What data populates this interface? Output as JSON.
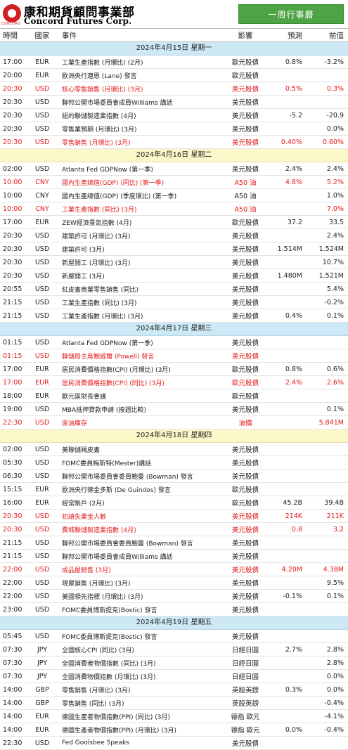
{
  "brand": {
    "zh": "康和期貨顧問事業部",
    "en": "Concord Futures Corp.",
    "mark_text": "CONCORD"
  },
  "title_button": "一周行事曆",
  "columns": {
    "time": "時間",
    "country": "國家",
    "event": "事件",
    "impact": "影響",
    "forecast": "預測",
    "previous": "前值"
  },
  "days": [
    {
      "date": "2024年4月15日  星期一",
      "style": "blue",
      "events": [
        {
          "time": "17:00",
          "country": "EUR",
          "event": "工業生產指數 (月環比) (2月)",
          "impact": "歐元股債",
          "forecast": "0.8%",
          "previous": "-3.2%",
          "red": false
        },
        {
          "time": "20:00",
          "country": "EUR",
          "event": "歐洲央行連恩 (Lane) 發言",
          "impact": "歐元股債",
          "forecast": "",
          "previous": "",
          "red": false
        },
        {
          "time": "20:30",
          "country": "USD",
          "event": "核心零售銷售 (月環比) (3月)",
          "impact": "美元股債",
          "forecast": "0.5%",
          "previous": "0.3%",
          "red": true
        },
        {
          "time": "20:30",
          "country": "USD",
          "event": "聯邦公開市場委員會成員Williams 講話",
          "impact": "美元股債",
          "forecast": "",
          "previous": "",
          "red": false
        },
        {
          "time": "20:30",
          "country": "USD",
          "event": "紐約聯儲製造業指數 (4月)",
          "impact": "美元股債",
          "forecast": "-5.2",
          "previous": "-20.9",
          "red": false
        },
        {
          "time": "20:30",
          "country": "USD",
          "event": "零售業預期 (月環比) (3月)",
          "impact": "美元股債",
          "forecast": "",
          "previous": "0.0%",
          "red": false
        },
        {
          "time": "20:30",
          "country": "USD",
          "event": "零售銷售 (月環比) (3月)",
          "impact": "美元股債",
          "forecast": "0.40%",
          "previous": "0.60%",
          "red": true
        }
      ]
    },
    {
      "date": "2024年4月16日  星期二",
      "style": "yellow",
      "events": [
        {
          "time": "02:00",
          "country": "USD",
          "event": "Atlanta Fed GDPNow (第一季)",
          "impact": "美元股債",
          "forecast": "2.4%",
          "previous": "2.4%",
          "red": false
        },
        {
          "time": "10:00",
          "country": "CNY",
          "event": "國內生產總值(GDP) (同比) (第一季)",
          "impact": "A50 油",
          "forecast": "4.8%",
          "previous": "5.2%",
          "red": true
        },
        {
          "time": "10:00",
          "country": "CNY",
          "event": "國內生產總值(GDP) (季度環比) (第一季)",
          "impact": "A50 油",
          "forecast": "",
          "previous": "1.0%",
          "red": false
        },
        {
          "time": "10:00",
          "country": "CNY",
          "event": "工業生產指數 (同比) (3月)",
          "impact": "A50 油",
          "forecast": "",
          "previous": "7.0%",
          "red": true
        },
        {
          "time": "17:00",
          "country": "EUR",
          "event": "ZEW經濟景氣指數 (4月)",
          "impact": "歐元股債",
          "forecast": "37.2",
          "previous": "33.5",
          "red": false
        },
        {
          "time": "20:30",
          "country": "USD",
          "event": "建築許可 (月環比) (3月)",
          "impact": "美元股債",
          "forecast": "",
          "previous": "2.4%",
          "red": false
        },
        {
          "time": "20:30",
          "country": "USD",
          "event": "建築許可 (3月)",
          "impact": "美元股債",
          "forecast": "1.514M",
          "previous": "1.524M",
          "red": false
        },
        {
          "time": "20:30",
          "country": "USD",
          "event": "新屋開工 (月環比) (3月)",
          "impact": "美元股債",
          "forecast": "",
          "previous": "10.7%",
          "red": false
        },
        {
          "time": "20:30",
          "country": "USD",
          "event": "新屋開工 (3月)",
          "impact": "美元股債",
          "forecast": "1.480M",
          "previous": "1.521M",
          "red": false
        },
        {
          "time": "20:55",
          "country": "USD",
          "event": "紅皮書商業零售銷售 (同比)",
          "impact": "美元股債",
          "forecast": "",
          "previous": "5.4%",
          "red": false
        },
        {
          "time": "21:15",
          "country": "USD",
          "event": "工業生產指數 (同比) (3月)",
          "impact": "美元股債",
          "forecast": "",
          "previous": "-0.2%",
          "red": false
        },
        {
          "time": "21:15",
          "country": "USD",
          "event": "工業生產指數 (月環比) (3月)",
          "impact": "美元股債",
          "forecast": "0.4%",
          "previous": "0.1%",
          "red": false
        }
      ]
    },
    {
      "date": "2024年4月17日  星期三",
      "style": "blue",
      "events": [
        {
          "time": "01:15",
          "country": "USD",
          "event": "Atlanta Fed GDPNow (第一季)",
          "impact": "美元股債",
          "forecast": "",
          "previous": "",
          "red": false
        },
        {
          "time": "01:15",
          "country": "USD",
          "event": "聯儲局主席鮑威爾 (Powell) 發言",
          "impact": "美元股債",
          "forecast": "",
          "previous": "",
          "red": true
        },
        {
          "time": "17:00",
          "country": "EUR",
          "event": "居民消費價格指數(CPI) (月環比) (3月)",
          "impact": "歐元股債",
          "forecast": "0.8%",
          "previous": "0.6%",
          "red": false
        },
        {
          "time": "17:00",
          "country": "EUR",
          "event": "居民消費價格指數(CPI) (同比) (3月)",
          "impact": "歐元股債",
          "forecast": "2.4%",
          "previous": "2.6%",
          "red": true
        },
        {
          "time": "18:00",
          "country": "EUR",
          "event": "歐元區財長會議",
          "impact": "歐元股債",
          "forecast": "",
          "previous": "",
          "red": false
        },
        {
          "time": "19:00",
          "country": "USD",
          "event": "MBA抵押貸款申請 (按週比較)",
          "impact": "美元股債",
          "forecast": "",
          "previous": "0.1%",
          "red": false
        },
        {
          "time": "22:30",
          "country": "USD",
          "event": "原油庫存",
          "impact": "油價",
          "forecast": "",
          "previous": "5.841M",
          "red": true
        }
      ]
    },
    {
      "date": "2024年4月18日  星期四",
      "style": "yellow",
      "events": [
        {
          "time": "02:00",
          "country": "USD",
          "event": "美聯儲褐皮書",
          "impact": "美元股債",
          "forecast": "",
          "previous": "",
          "red": false
        },
        {
          "time": "05:30",
          "country": "USD",
          "event": "FOMC委員梅斯特(Mester)講話",
          "impact": "美元股債",
          "forecast": "",
          "previous": "",
          "red": false
        },
        {
          "time": "06:30",
          "country": "USD",
          "event": "聯邦公開市場委員會委員鮑曼 (Bowman) 發言",
          "impact": "美元股債",
          "forecast": "",
          "previous": "",
          "red": false
        },
        {
          "time": "15:15",
          "country": "EUR",
          "event": "歐洲央行德金多斯 (De Guindos) 發言",
          "impact": "歐元股債",
          "forecast": "",
          "previous": "",
          "red": false
        },
        {
          "time": "16:00",
          "country": "EUR",
          "event": "經常賬戶 (2月)",
          "impact": "歐元股債",
          "forecast": "45.2B",
          "previous": "39.4B",
          "red": false
        },
        {
          "time": "20:30",
          "country": "USD",
          "event": "初請失業金人數",
          "impact": "美元股債",
          "forecast": "214K",
          "previous": "211K",
          "red": true
        },
        {
          "time": "20:30",
          "country": "USD",
          "event": "費城聯儲製造業指數 (4月)",
          "impact": "美元股債",
          "forecast": "0.8",
          "previous": "3.2",
          "red": true
        },
        {
          "time": "21:15",
          "country": "USD",
          "event": "聯邦公開市場委員會委員鮑曼 (Bowman) 發言",
          "impact": "美元股債",
          "forecast": "",
          "previous": "",
          "red": false
        },
        {
          "time": "21:15",
          "country": "USD",
          "event": "聯邦公開市場委員會成員Williams 講話",
          "impact": "美元股債",
          "forecast": "",
          "previous": "",
          "red": false
        },
        {
          "time": "22:00",
          "country": "USD",
          "event": "成品屋銷售 (3月)",
          "impact": "美元股債",
          "forecast": "4.20M",
          "previous": "4.38M",
          "red": true
        },
        {
          "time": "22:00",
          "country": "USD",
          "event": "現屋銷售 (月環比) (3月)",
          "impact": "美元股債",
          "forecast": "",
          "previous": "9.5%",
          "red": false
        },
        {
          "time": "22:00",
          "country": "USD",
          "event": "美國領先指標 (月環比) (3月)",
          "impact": "美元股債",
          "forecast": "-0.1%",
          "previous": "0.1%",
          "red": false
        },
        {
          "time": "23:00",
          "country": "USD",
          "event": "FOMC委員博斯提克(Bostic) 發言",
          "impact": "美元股債",
          "forecast": "",
          "previous": "",
          "red": false
        }
      ]
    },
    {
      "date": "2024年4月19日  星期五",
      "style": "blue",
      "events": [
        {
          "time": "05:45",
          "country": "USD",
          "event": "FOMC委員博斯提克(Bostic) 發言",
          "impact": "美元股債",
          "forecast": "",
          "previous": "",
          "red": false
        },
        {
          "time": "07:30",
          "country": "JPY",
          "event": "全國核心CPI (同比) (3月)",
          "impact": "日經日圓",
          "forecast": "2.7%",
          "previous": "2.8%",
          "red": false
        },
        {
          "time": "07:30",
          "country": "JPY",
          "event": "全國消費者物價指數 (同比) (3月)",
          "impact": "日經日圓",
          "forecast": "",
          "previous": "2.8%",
          "red": false
        },
        {
          "time": "07:30",
          "country": "JPY",
          "event": "全國消費物價指數 (月環比) (3月)",
          "impact": "日經日圓",
          "forecast": "",
          "previous": "0.0%",
          "red": false
        },
        {
          "time": "14:00",
          "country": "GBP",
          "event": "零售銷售 (月環比) (3月)",
          "impact": "英股英鎊",
          "forecast": "0.3%",
          "previous": "0.0%",
          "red": false
        },
        {
          "time": "14:00",
          "country": "GBP",
          "event": "零售銷售 (同比) (3月)",
          "impact": "英股英鎊",
          "forecast": "",
          "previous": "-0.4%",
          "red": false
        },
        {
          "time": "14:00",
          "country": "EUR",
          "event": "德國生產者物價指數(PPI) (同比) (3月)",
          "impact": "德指 歐元",
          "forecast": "",
          "previous": "-4.1%",
          "red": false
        },
        {
          "time": "14:00",
          "country": "EUR",
          "event": "德國生產者物價指數(PPI) (月環比) (3月)",
          "impact": "德指 歐元",
          "forecast": "0.0%",
          "previous": "-0.4%",
          "red": false
        },
        {
          "time": "22:30",
          "country": "USD",
          "event": "Fed Goolsbee Speaks",
          "impact": "美元股債",
          "forecast": "",
          "previous": "",
          "red": false
        }
      ]
    }
  ]
}
